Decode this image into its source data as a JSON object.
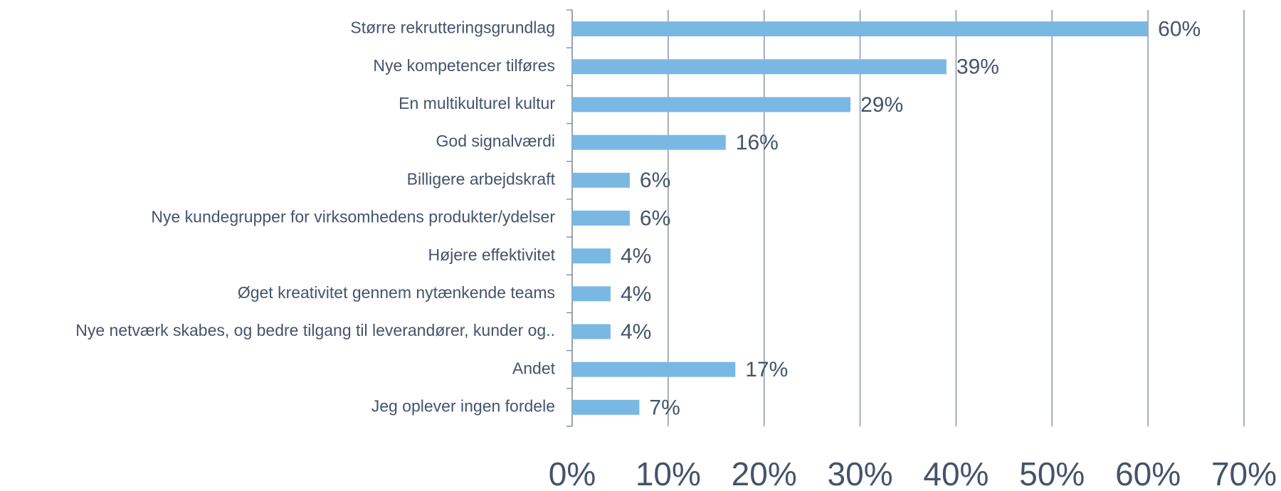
{
  "chart_data": {
    "type": "barh",
    "categories": [
      "Større rekrutteringsgrundlag",
      "Nye kompetencer tilføres",
      "En multikulturel kultur",
      "God signalværdi",
      "Billigere arbejdskraft",
      "Nye kundegrupper for virksomhedens produkter/ydelser",
      "Højere effektivitet",
      "Øget kreativitet gennem nytænkende teams",
      "Nye netværk skabes, og bedre tilgang til leverandører, kunder og..",
      "Andet",
      "Jeg oplever ingen fordele"
    ],
    "values": [
      60,
      39,
      29,
      16,
      6,
      6,
      4,
      4,
      4,
      17,
      7
    ],
    "value_labels": [
      "60%",
      "39%",
      "29%",
      "16%",
      "6%",
      "6%",
      "4%",
      "4%",
      "4%",
      "17%",
      "7%"
    ],
    "color": "#7ab8e4",
    "xlim": [
      0,
      70
    ],
    "xticks": [
      {
        "value": 0,
        "label": "0%"
      },
      {
        "value": 10,
        "label": "10%"
      },
      {
        "value": 20,
        "label": "20%"
      },
      {
        "value": 30,
        "label": "30%"
      },
      {
        "value": 40,
        "label": "40%"
      },
      {
        "value": 50,
        "label": "50%"
      },
      {
        "value": 60,
        "label": "60%"
      },
      {
        "value": 70,
        "label": "70%"
      }
    ],
    "grid": true
  }
}
